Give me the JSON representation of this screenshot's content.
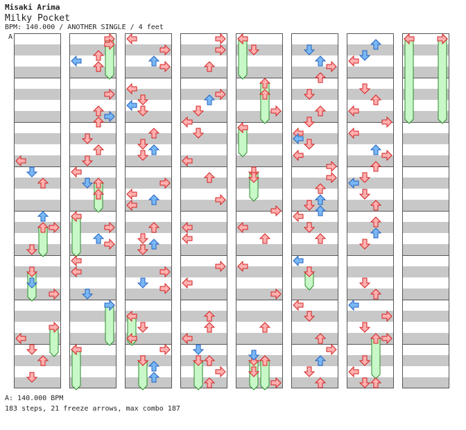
{
  "song": {
    "artist": "Misaki Arima",
    "title": "Milky Pocket",
    "meta": "BPM: 140.000 / ANOTHER SINGLE / 4 feet",
    "section_letter": "A"
  },
  "footer": {
    "bpm_line": "A: 140.000 BPM",
    "summary": "183 steps, 21 freeze arrows, max combo 187"
  },
  "chart_data": {
    "type": "step-chart",
    "columns": 8,
    "measures_per_column": 8,
    "lanes": [
      "left",
      "down",
      "up",
      "right"
    ],
    "colors": {
      "red_arrow": "#ffb0b0",
      "blue_arrow": "#7ab8f5",
      "freeze": "#c8f8c8",
      "band": "#c8c8c8"
    },
    "notes": [
      {
        "c": 0,
        "b": 22,
        "l": 0,
        "k": "r"
      },
      {
        "c": 0,
        "b": 24,
        "l": 1,
        "k": "b"
      },
      {
        "c": 0,
        "b": 26,
        "l": 2,
        "k": "r"
      },
      {
        "c": 0,
        "b": 32,
        "l": 2,
        "k": "b"
      },
      {
        "c": 0,
        "b": 34,
        "l": 3,
        "k": "r"
      },
      {
        "c": 0,
        "b": 38,
        "l": 1,
        "k": "r"
      },
      {
        "c": 0,
        "b": 44,
        "l": 1,
        "k": "b"
      },
      {
        "c": 0,
        "b": 46,
        "l": 3,
        "k": "r"
      },
      {
        "c": 0,
        "b": 54,
        "l": 0,
        "k": "r"
      },
      {
        "c": 0,
        "b": 56,
        "l": 1,
        "k": "r"
      },
      {
        "c": 0,
        "b": 58,
        "l": 2,
        "k": "r"
      },
      {
        "c": 0,
        "b": 61,
        "l": 1,
        "k": "r"
      },
      {
        "c": 1,
        "b": 1,
        "l": 3,
        "k": "r"
      },
      {
        "c": 1,
        "b": 3,
        "l": 2,
        "k": "r"
      },
      {
        "c": 1,
        "b": 4,
        "l": 0,
        "k": "b"
      },
      {
        "c": 1,
        "b": 5,
        "l": 2,
        "k": "r"
      },
      {
        "c": 1,
        "b": 10,
        "l": 3,
        "k": "r"
      },
      {
        "c": 1,
        "b": 13,
        "l": 2,
        "k": "r"
      },
      {
        "c": 1,
        "b": 14,
        "l": 3,
        "k": "b"
      },
      {
        "c": 1,
        "b": 15,
        "l": 2,
        "k": "r"
      },
      {
        "c": 1,
        "b": 18,
        "l": 1,
        "k": "r"
      },
      {
        "c": 1,
        "b": 20,
        "l": 2,
        "k": "r"
      },
      {
        "c": 1,
        "b": 22,
        "l": 1,
        "k": "r"
      },
      {
        "c": 1,
        "b": 24,
        "l": 0,
        "k": "r"
      },
      {
        "c": 1,
        "b": 26,
        "l": 1,
        "k": "b"
      },
      {
        "c": 1,
        "b": 28,
        "l": 2,
        "k": "r"
      },
      {
        "c": 1,
        "b": 34,
        "l": 3,
        "k": "r"
      },
      {
        "c": 1,
        "b": 36,
        "l": 2,
        "k": "b"
      },
      {
        "c": 1,
        "b": 37,
        "l": 3,
        "k": "r"
      },
      {
        "c": 1,
        "b": 40,
        "l": 0,
        "k": "r"
      },
      {
        "c": 1,
        "b": 42,
        "l": 0,
        "k": "r"
      },
      {
        "c": 1,
        "b": 46,
        "l": 1,
        "k": "b"
      },
      {
        "c": 1,
        "b": 48,
        "l": 3,
        "k": "b"
      },
      {
        "c": 1,
        "b": 56,
        "l": 0,
        "k": "r"
      },
      {
        "c": 2,
        "b": 0,
        "l": 0,
        "k": "r"
      },
      {
        "c": 2,
        "b": 2,
        "l": 3,
        "k": "r"
      },
      {
        "c": 2,
        "b": 4,
        "l": 2,
        "k": "b"
      },
      {
        "c": 2,
        "b": 5,
        "l": 3,
        "k": "r"
      },
      {
        "c": 2,
        "b": 9,
        "l": 0,
        "k": "r"
      },
      {
        "c": 2,
        "b": 11,
        "l": 1,
        "k": "r"
      },
      {
        "c": 2,
        "b": 12,
        "l": 0,
        "k": "b"
      },
      {
        "c": 2,
        "b": 13,
        "l": 1,
        "k": "r"
      },
      {
        "c": 2,
        "b": 17,
        "l": 2,
        "k": "r"
      },
      {
        "c": 2,
        "b": 19,
        "l": 1,
        "k": "r"
      },
      {
        "c": 2,
        "b": 20,
        "l": 2,
        "k": "b"
      },
      {
        "c": 2,
        "b": 21,
        "l": 1,
        "k": "r"
      },
      {
        "c": 2,
        "b": 26,
        "l": 3,
        "k": "r"
      },
      {
        "c": 2,
        "b": 28,
        "l": 0,
        "k": "r"
      },
      {
        "c": 2,
        "b": 29,
        "l": 2,
        "k": "b"
      },
      {
        "c": 2,
        "b": 30,
        "l": 0,
        "k": "r"
      },
      {
        "c": 2,
        "b": 34,
        "l": 2,
        "k": "r"
      },
      {
        "c": 2,
        "b": 36,
        "l": 1,
        "k": "r"
      },
      {
        "c": 2,
        "b": 37,
        "l": 2,
        "k": "b"
      },
      {
        "c": 2,
        "b": 38,
        "l": 1,
        "k": "r"
      },
      {
        "c": 2,
        "b": 42,
        "l": 3,
        "k": "r"
      },
      {
        "c": 2,
        "b": 44,
        "l": 1,
        "k": "b"
      },
      {
        "c": 2,
        "b": 45,
        "l": 3,
        "k": "r"
      },
      {
        "c": 2,
        "b": 52,
        "l": 1,
        "k": "r"
      },
      {
        "c": 2,
        "b": 54,
        "l": 0,
        "k": "r"
      },
      {
        "c": 2,
        "b": 56,
        "l": 3,
        "k": "r"
      },
      {
        "c": 2,
        "b": 58,
        "l": 1,
        "k": "r"
      },
      {
        "c": 2,
        "b": 59,
        "l": 2,
        "k": "b"
      },
      {
        "c": 2,
        "b": 61,
        "l": 2,
        "k": "b"
      },
      {
        "c": 3,
        "b": 0,
        "l": 3,
        "k": "r"
      },
      {
        "c": 3,
        "b": 2,
        "l": 3,
        "k": "r"
      },
      {
        "c": 3,
        "b": 5,
        "l": 2,
        "k": "r"
      },
      {
        "c": 3,
        "b": 10,
        "l": 3,
        "k": "r"
      },
      {
        "c": 3,
        "b": 11,
        "l": 2,
        "k": "b"
      },
      {
        "c": 3,
        "b": 13,
        "l": 1,
        "k": "r"
      },
      {
        "c": 3,
        "b": 15,
        "l": 0,
        "k": "r"
      },
      {
        "c": 3,
        "b": 17,
        "l": 1,
        "k": "r"
      },
      {
        "c": 3,
        "b": 22,
        "l": 0,
        "k": "r"
      },
      {
        "c": 3,
        "b": 25,
        "l": 2,
        "k": "r"
      },
      {
        "c": 3,
        "b": 29,
        "l": 3,
        "k": "r"
      },
      {
        "c": 3,
        "b": 34,
        "l": 0,
        "k": "r"
      },
      {
        "c": 3,
        "b": 36,
        "l": 0,
        "k": "r"
      },
      {
        "c": 3,
        "b": 41,
        "l": 3,
        "k": "r"
      },
      {
        "c": 3,
        "b": 44,
        "l": 0,
        "k": "r"
      },
      {
        "c": 3,
        "b": 50,
        "l": 2,
        "k": "r"
      },
      {
        "c": 3,
        "b": 52,
        "l": 2,
        "k": "r"
      },
      {
        "c": 3,
        "b": 54,
        "l": 0,
        "k": "r"
      },
      {
        "c": 3,
        "b": 56,
        "l": 1,
        "k": "b"
      },
      {
        "c": 3,
        "b": 58,
        "l": 2,
        "k": "r"
      },
      {
        "c": 3,
        "b": 60,
        "l": 3,
        "k": "r"
      },
      {
        "c": 3,
        "b": 62,
        "l": 2,
        "k": "r"
      },
      {
        "c": 3,
        "b": 66,
        "l": 2,
        "k": "r"
      },
      {
        "c": 3,
        "b": 68,
        "l": 1,
        "k": "r"
      },
      {
        "c": 3,
        "b": 71,
        "l": 0,
        "k": "r"
      },
      {
        "c": 3,
        "b": 72,
        "l": 2,
        "k": "r"
      },
      {
        "c": 3,
        "b": 82,
        "l": 3,
        "k": "r"
      },
      {
        "c": 4,
        "b": 0,
        "l": 0,
        "k": "r"
      },
      {
        "c": 4,
        "b": 2,
        "l": 1,
        "k": "r"
      },
      {
        "c": 4,
        "b": 10,
        "l": 2,
        "k": "r"
      },
      {
        "c": 4,
        "b": 13,
        "l": 3,
        "k": "r"
      },
      {
        "c": 4,
        "b": 16,
        "l": 0,
        "k": "r"
      },
      {
        "c": 4,
        "b": 25,
        "l": 1,
        "k": "r"
      },
      {
        "c": 4,
        "b": 31,
        "l": 3,
        "k": "r"
      },
      {
        "c": 4,
        "b": 34,
        "l": 0,
        "k": "r"
      },
      {
        "c": 4,
        "b": 36,
        "l": 2,
        "k": "r"
      },
      {
        "c": 4,
        "b": 41,
        "l": 0,
        "k": "r"
      },
      {
        "c": 4,
        "b": 46,
        "l": 3,
        "k": "r"
      },
      {
        "c": 4,
        "b": 52,
        "l": 2,
        "k": "r"
      },
      {
        "c": 4,
        "b": 57,
        "l": 1,
        "k": "b"
      },
      {
        "c": 4,
        "b": 58,
        "l": 2,
        "k": "r"
      },
      {
        "c": 4,
        "b": 60,
        "l": 1,
        "k": "r"
      },
      {
        "c": 4,
        "b": 62,
        "l": 3,
        "k": "r"
      },
      {
        "c": 5,
        "b": 2,
        "l": 1,
        "k": "b"
      },
      {
        "c": 5,
        "b": 4,
        "l": 2,
        "k": "b"
      },
      {
        "c": 5,
        "b": 5,
        "l": 3,
        "k": "r"
      },
      {
        "c": 5,
        "b": 7,
        "l": 2,
        "k": "r"
      },
      {
        "c": 5,
        "b": 10,
        "l": 1,
        "k": "r"
      },
      {
        "c": 5,
        "b": 13,
        "l": 2,
        "k": "r"
      },
      {
        "c": 5,
        "b": 15,
        "l": 1,
        "k": "r"
      },
      {
        "c": 5,
        "b": 17,
        "l": 0,
        "k": "r"
      },
      {
        "c": 5,
        "b": 18,
        "l": 0,
        "k": "b"
      },
      {
        "c": 5,
        "b": 19,
        "l": 1,
        "k": "r"
      },
      {
        "c": 5,
        "b": 21,
        "l": 0,
        "k": "r"
      },
      {
        "c": 5,
        "b": 23,
        "l": 3,
        "k": "r"
      },
      {
        "c": 5,
        "b": 25,
        "l": 3,
        "k": "r"
      },
      {
        "c": 5,
        "b": 27,
        "l": 2,
        "k": "r"
      },
      {
        "c": 5,
        "b": 29,
        "l": 2,
        "k": "b"
      },
      {
        "c": 5,
        "b": 30,
        "l": 1,
        "k": "r"
      },
      {
        "c": 5,
        "b": 31,
        "l": 2,
        "k": "b"
      },
      {
        "c": 5,
        "b": 32,
        "l": 0,
        "k": "r"
      },
      {
        "c": 5,
        "b": 34,
        "l": 1,
        "k": "r"
      },
      {
        "c": 5,
        "b": 36,
        "l": 2,
        "k": "r"
      },
      {
        "c": 5,
        "b": 40,
        "l": 0,
        "k": "b"
      },
      {
        "c": 5,
        "b": 48,
        "l": 0,
        "k": "r"
      },
      {
        "c": 5,
        "b": 50,
        "l": 1,
        "k": "r"
      },
      {
        "c": 5,
        "b": 54,
        "l": 2,
        "k": "r"
      },
      {
        "c": 5,
        "b": 56,
        "l": 3,
        "k": "r"
      },
      {
        "c": 5,
        "b": 58,
        "l": 2,
        "k": "b"
      },
      {
        "c": 5,
        "b": 60,
        "l": 1,
        "k": "r"
      },
      {
        "c": 5,
        "b": 62,
        "l": 2,
        "k": "r"
      },
      {
        "c": 6,
        "b": 1,
        "l": 2,
        "k": "b"
      },
      {
        "c": 6,
        "b": 3,
        "l": 1,
        "k": "b"
      },
      {
        "c": 6,
        "b": 4,
        "l": 0,
        "k": "r"
      },
      {
        "c": 6,
        "b": 9,
        "l": 1,
        "k": "r"
      },
      {
        "c": 6,
        "b": 11,
        "l": 2,
        "k": "r"
      },
      {
        "c": 6,
        "b": 13,
        "l": 0,
        "k": "r"
      },
      {
        "c": 6,
        "b": 15,
        "l": 3,
        "k": "r"
      },
      {
        "c": 6,
        "b": 17,
        "l": 0,
        "k": "r"
      },
      {
        "c": 6,
        "b": 20,
        "l": 2,
        "k": "b"
      },
      {
        "c": 6,
        "b": 21,
        "l": 3,
        "k": "r"
      },
      {
        "c": 6,
        "b": 23,
        "l": 2,
        "k": "r"
      },
      {
        "c": 6,
        "b": 25,
        "l": 1,
        "k": "r"
      },
      {
        "c": 6,
        "b": 26,
        "l": 0,
        "k": "b"
      },
      {
        "c": 6,
        "b": 28,
        "l": 1,
        "k": "r"
      },
      {
        "c": 6,
        "b": 30,
        "l": 2,
        "k": "r"
      },
      {
        "c": 6,
        "b": 33,
        "l": 2,
        "k": "r"
      },
      {
        "c": 6,
        "b": 35,
        "l": 2,
        "k": "b"
      },
      {
        "c": 6,
        "b": 37,
        "l": 1,
        "k": "r"
      },
      {
        "c": 6,
        "b": 44,
        "l": 1,
        "k": "r"
      },
      {
        "c": 6,
        "b": 46,
        "l": 2,
        "k": "r"
      },
      {
        "c": 6,
        "b": 48,
        "l": 0,
        "k": "b"
      },
      {
        "c": 6,
        "b": 50,
        "l": 3,
        "k": "r"
      },
      {
        "c": 6,
        "b": 52,
        "l": 1,
        "k": "r"
      },
      {
        "c": 6,
        "b": 54,
        "l": 3,
        "k": "r"
      },
      {
        "c": 6,
        "b": 58,
        "l": 1,
        "k": "r"
      },
      {
        "c": 6,
        "b": 60,
        "l": 0,
        "k": "r"
      },
      {
        "c": 6,
        "b": 62,
        "l": 1,
        "k": "r"
      },
      {
        "c": 6,
        "b": 62,
        "l": 2,
        "k": "r"
      },
      {
        "c": 7,
        "b": 0,
        "l": 0,
        "k": "r"
      },
      {
        "c": 7,
        "b": 0,
        "l": 3,
        "k": "r"
      }
    ],
    "freezes": [
      {
        "c": 0,
        "s": 34,
        "e": 40,
        "l": 2
      },
      {
        "c": 0,
        "s": 42,
        "e": 48,
        "l": 1
      },
      {
        "c": 0,
        "s": 52,
        "e": 58,
        "l": 3
      },
      {
        "c": 1,
        "s": 0,
        "e": 8,
        "l": 3
      },
      {
        "c": 1,
        "s": 26,
        "e": 32,
        "l": 2
      },
      {
        "c": 1,
        "s": 32,
        "e": 40,
        "l": 0
      },
      {
        "c": 1,
        "s": 48,
        "e": 56,
        "l": 3
      },
      {
        "c": 1,
        "s": 56,
        "e": 64,
        "l": 0
      },
      {
        "c": 2,
        "s": 50,
        "e": 56,
        "l": 0
      },
      {
        "c": 2,
        "s": 58,
        "e": 64,
        "l": 1
      },
      {
        "c": 3,
        "s": 58,
        "e": 64,
        "l": 1
      },
      {
        "c": 4,
        "s": 0,
        "e": 8,
        "l": 0
      },
      {
        "c": 4,
        "s": 8,
        "e": 16,
        "l": 2
      },
      {
        "c": 4,
        "s": 16,
        "e": 22,
        "l": 0
      },
      {
        "c": 4,
        "s": 24,
        "e": 30,
        "l": 1
      },
      {
        "c": 4,
        "s": 58,
        "e": 66,
        "l": 1
      },
      {
        "c": 4,
        "s": 58,
        "e": 66,
        "l": 2
      },
      {
        "c": 5,
        "s": 42,
        "e": 46,
        "l": 1
      },
      {
        "c": 6,
        "s": 54,
        "e": 62,
        "l": 2
      },
      {
        "c": 7,
        "s": 0,
        "e": 16,
        "l": 0
      },
      {
        "c": 7,
        "s": 0,
        "e": 16,
        "l": 3
      }
    ]
  }
}
